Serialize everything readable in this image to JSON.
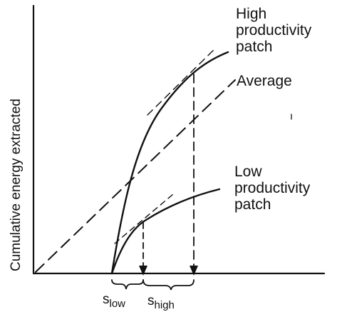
{
  "diagram": {
    "y_axis_label": "Cumulative energy extracted",
    "curves": [
      {
        "id": "high",
        "label_lines": [
          "High",
          "productivity",
          "patch"
        ]
      },
      {
        "id": "average",
        "label_lines": [
          "Average"
        ]
      },
      {
        "id": "low",
        "label_lines": [
          "Low",
          "productivity",
          "patch"
        ]
      }
    ],
    "markers": [
      {
        "symbol": "s",
        "subscript": "low"
      },
      {
        "symbol": "s",
        "subscript": "high"
      }
    ]
  }
}
